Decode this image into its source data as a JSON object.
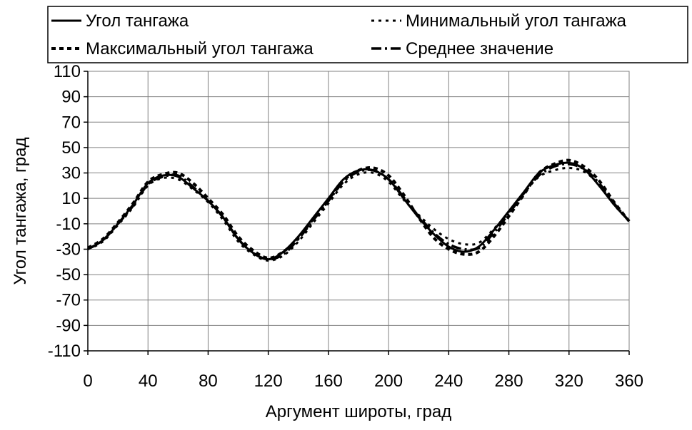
{
  "chart_data": {
    "type": "line",
    "title": "",
    "xlabel": "Аргумент широты, град",
    "ylabel": "Угол тангажа, град",
    "xlim": [
      0,
      360
    ],
    "ylim": [
      -110,
      110
    ],
    "x_ticks": [
      0,
      40,
      80,
      120,
      160,
      200,
      240,
      280,
      320,
      360
    ],
    "y_ticks": [
      110,
      90,
      70,
      50,
      30,
      10,
      -10,
      -30,
      -50,
      -70,
      -90,
      -110
    ],
    "x_tick_labels": [
      "0",
      "40",
      "80",
      "120",
      "160",
      "200",
      "240",
      "280",
      "320",
      "360"
    ],
    "y_tick_labels": [
      "110",
      "90",
      "70",
      "50",
      "30",
      "10",
      "-10",
      "-30",
      "-50",
      "-70",
      "-90",
      "-110"
    ],
    "grid": true,
    "legend": "top",
    "x": [
      0,
      10,
      20,
      30,
      40,
      50,
      60,
      70,
      80,
      90,
      100,
      110,
      120,
      130,
      140,
      150,
      160,
      170,
      180,
      190,
      200,
      210,
      220,
      230,
      240,
      250,
      260,
      270,
      280,
      290,
      300,
      310,
      320,
      330,
      340,
      350,
      360
    ],
    "series": [
      {
        "name": "Угол тангажа",
        "style": "solid",
        "color": "#000000",
        "values": [
          -30,
          -23,
          -10,
          5,
          22,
          28,
          27,
          18,
          8,
          -5,
          -22,
          -33,
          -38,
          -32,
          -20,
          -5,
          10,
          25,
          32,
          32,
          25,
          10,
          -5,
          -18,
          -28,
          -32,
          -28,
          -15,
          0,
          15,
          30,
          36,
          38,
          33,
          20,
          5,
          -8
        ]
      },
      {
        "name": "Минимальный угол тангажа",
        "style": "dashed-fine",
        "color": "#000000",
        "values": [
          -30,
          -24,
          -11,
          3,
          20,
          26,
          25,
          17,
          7,
          -7,
          -24,
          -34,
          -39,
          -35,
          -24,
          -9,
          6,
          21,
          29,
          30,
          23,
          9,
          -3,
          -14,
          -22,
          -26,
          -25,
          -14,
          -1,
          14,
          27,
          32,
          34,
          31,
          21,
          5,
          -8
        ]
      },
      {
        "name": "Максимальный угол тангажа",
        "style": "dashed",
        "color": "#000000",
        "values": [
          -29,
          -22,
          -9,
          6,
          23,
          29,
          30,
          22,
          10,
          -3,
          -20,
          -31,
          -37,
          -32,
          -21,
          -6,
          9,
          24,
          32,
          34,
          28,
          13,
          -5,
          -21,
          -30,
          -34,
          -32,
          -20,
          -4,
          13,
          30,
          37,
          40,
          35,
          24,
          7,
          -8
        ]
      },
      {
        "name": "Среднее значение",
        "style": "dash-dot",
        "color": "#000000",
        "values": [
          -30,
          -23,
          -10,
          4,
          21,
          27,
          28,
          19,
          8,
          -5,
          -22,
          -33,
          -38,
          -34,
          -22,
          -7,
          8,
          23,
          31,
          32,
          25,
          11,
          -4,
          -17,
          -26,
          -30,
          -29,
          -17,
          -2,
          14,
          28,
          35,
          37,
          33,
          22,
          6,
          -8
        ]
      }
    ]
  }
}
